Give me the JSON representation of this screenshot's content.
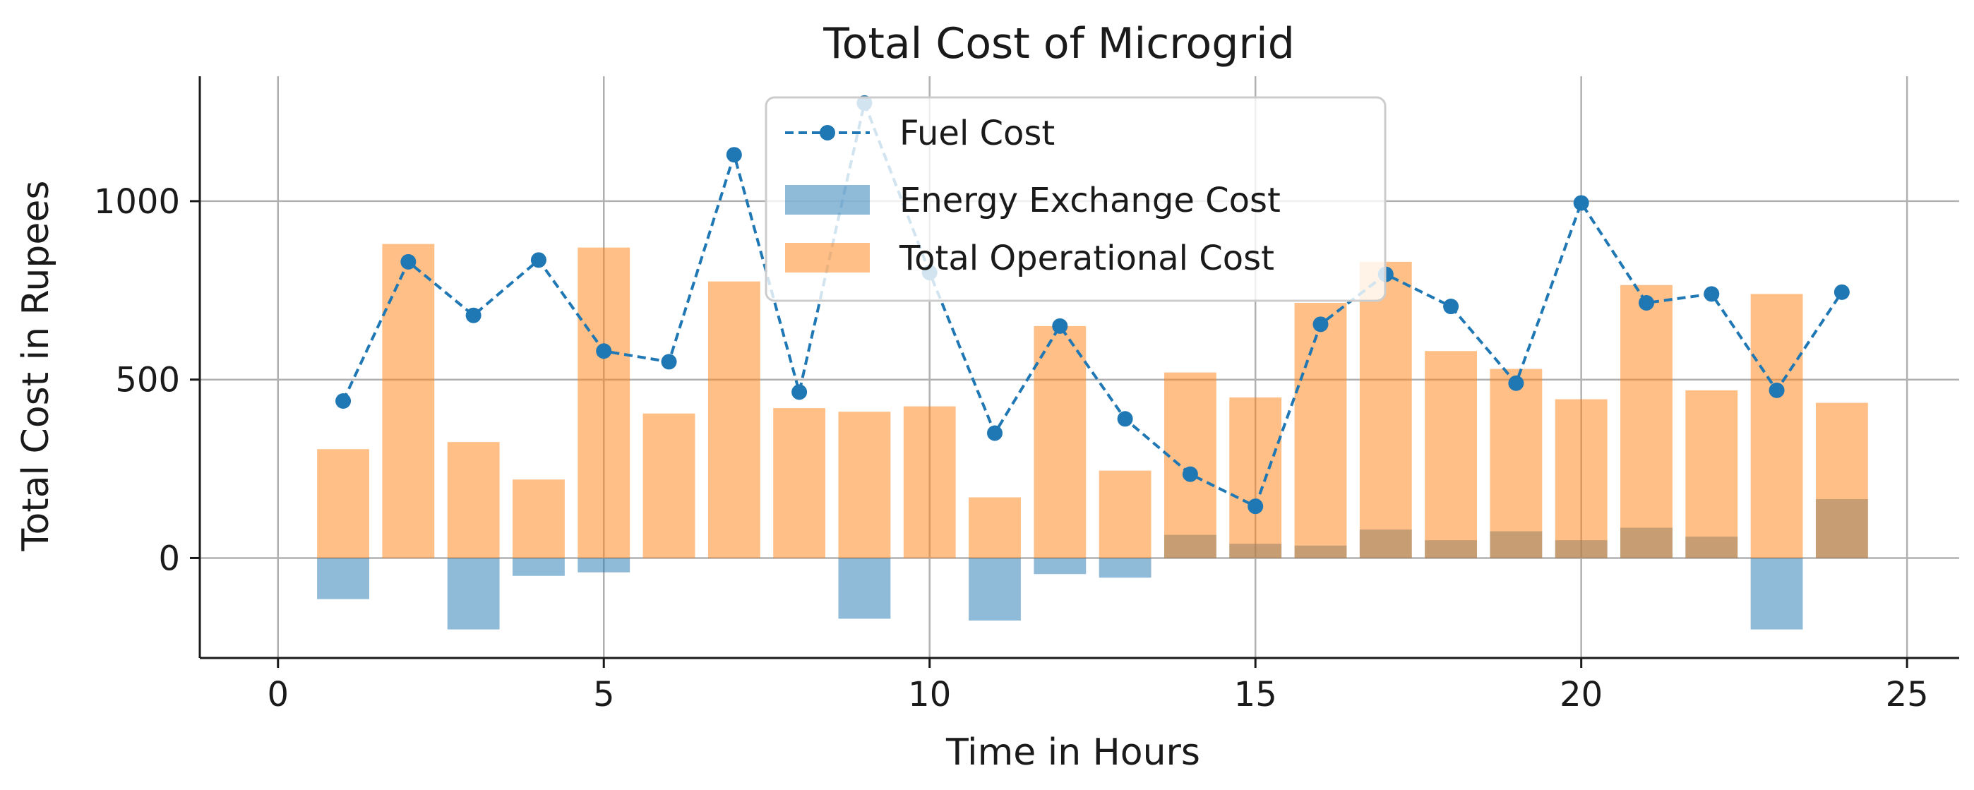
{
  "chart_data": {
    "type": "bar",
    "title": "Total Cost of Microgrid",
    "xlabel": "Time in Hours",
    "ylabel": "Total Cost in Rupees",
    "xlim": [
      -1.2,
      25.8
    ],
    "ylim": [
      -280,
      1350
    ],
    "xticks": [
      0,
      5,
      10,
      15,
      20,
      25
    ],
    "yticks": [
      0,
      500,
      1000
    ],
    "grid": true,
    "legend_position": "top-center",
    "x": [
      1,
      2,
      3,
      4,
      5,
      6,
      7,
      8,
      9,
      10,
      11,
      12,
      13,
      14,
      15,
      16,
      17,
      18,
      19,
      20,
      21,
      22,
      23,
      24
    ],
    "series": [
      {
        "name": "Fuel Cost",
        "kind": "line",
        "style": "dashed",
        "marker": "circle",
        "color": "#1f77b4",
        "values": [
          440,
          830,
          680,
          835,
          580,
          550,
          1130,
          465,
          1275,
          800,
          350,
          650,
          390,
          235,
          145,
          655,
          795,
          705,
          490,
          995,
          715,
          740,
          470,
          745
        ]
      },
      {
        "name": "Energy Exchange Cost",
        "kind": "bar",
        "color": "#1f77b4",
        "alpha": 0.5,
        "values": [
          -115,
          0,
          -200,
          -50,
          -40,
          0,
          0,
          0,
          -170,
          0,
          -175,
          -45,
          -55,
          65,
          40,
          35,
          80,
          50,
          75,
          50,
          85,
          60,
          -200,
          165
        ]
      },
      {
        "name": "Total Operational Cost",
        "kind": "bar",
        "color": "#ff7f0e",
        "alpha": 0.5,
        "values": [
          305,
          880,
          325,
          220,
          870,
          405,
          775,
          420,
          410,
          425,
          170,
          650,
          245,
          520,
          450,
          715,
          830,
          580,
          530,
          445,
          765,
          470,
          740,
          435
        ]
      }
    ]
  }
}
